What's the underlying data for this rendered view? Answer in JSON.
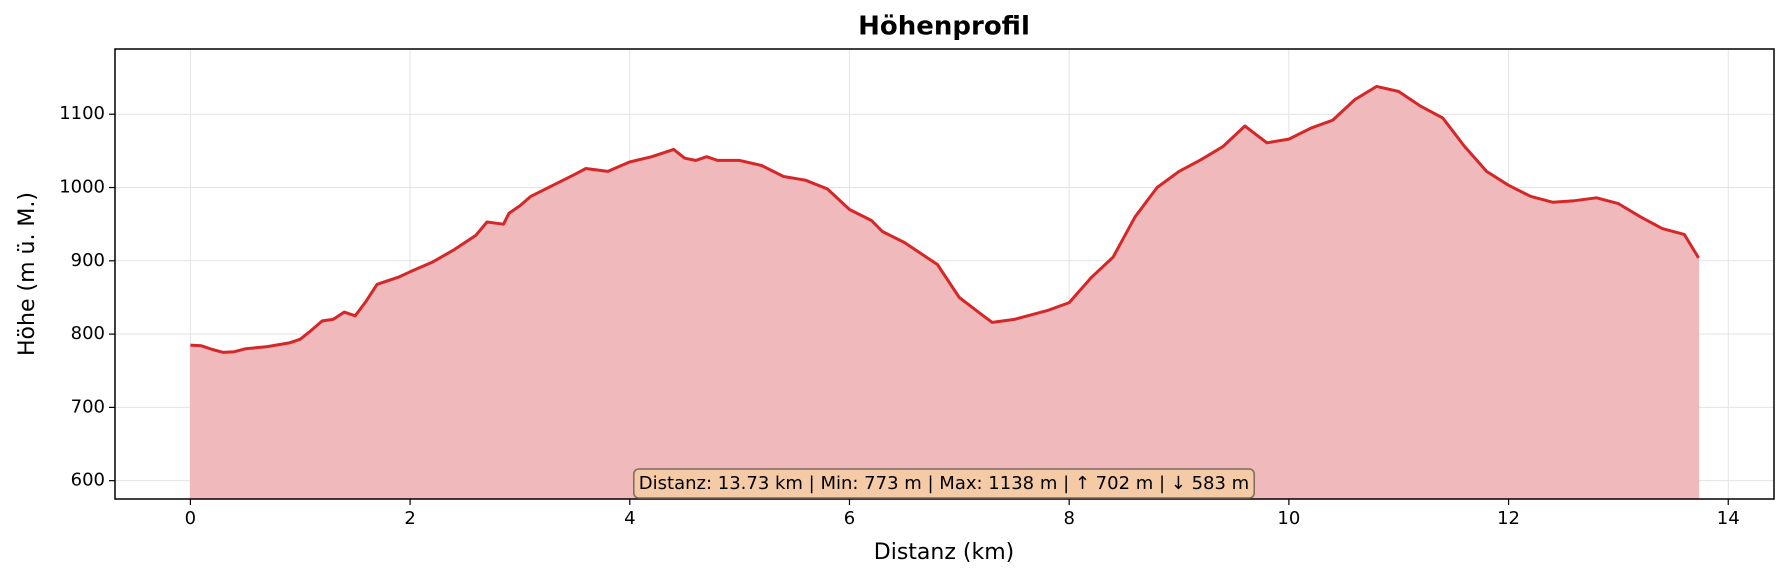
{
  "chart_data": {
    "type": "area",
    "title": "Höhenprofil",
    "xlabel": "Distanz (km)",
    "ylabel": "Höhe (m ü. M.)",
    "annotation": "Distanz: 13.73 km | Min: 773 m | Max: 1138 m | ↑ 702 m | ↓ 583 m",
    "x": [
      0,
      0.1,
      0.2,
      0.3,
      0.4,
      0.5,
      0.7,
      0.9,
      1.0,
      1.1,
      1.2,
      1.3,
      1.4,
      1.5,
      1.6,
      1.7,
      1.9,
      2.0,
      2.2,
      2.4,
      2.6,
      2.7,
      2.85,
      2.9,
      3.0,
      3.1,
      3.3,
      3.5,
      3.6,
      3.8,
      4.0,
      4.2,
      4.4,
      4.5,
      4.6,
      4.7,
      4.8,
      5.0,
      5.2,
      5.4,
      5.6,
      5.8,
      6.0,
      6.2,
      6.3,
      6.5,
      6.8,
      7.0,
      7.2,
      7.3,
      7.5,
      7.8,
      8.0,
      8.2,
      8.4,
      8.6,
      8.8,
      9.0,
      9.2,
      9.4,
      9.6,
      9.8,
      10.0,
      10.2,
      10.4,
      10.6,
      10.8,
      11.0,
      11.2,
      11.4,
      11.6,
      11.8,
      12.0,
      12.2,
      12.4,
      12.6,
      12.8,
      13.0,
      13.2,
      13.4,
      13.6,
      13.73
    ],
    "series": [
      {
        "name": "Höhe",
        "color": "#d62728",
        "fill": "#f0b9bc",
        "values": [
          785,
          784,
          779,
          775,
          776,
          780,
          783,
          788,
          793,
          805,
          818,
          820,
          830,
          825,
          845,
          868,
          878,
          885,
          898,
          915,
          935,
          953,
          950,
          965,
          975,
          988,
          1003,
          1018,
          1026,
          1022,
          1035,
          1042,
          1052,
          1040,
          1037,
          1042,
          1037,
          1037,
          1030,
          1015,
          1010,
          998,
          970,
          955,
          940,
          925,
          895,
          850,
          827,
          816,
          820,
          832,
          843,
          877,
          905,
          960,
          1000,
          1022,
          1038,
          1056,
          1084,
          1061,
          1066,
          1081,
          1092,
          1120,
          1138,
          1131,
          1111,
          1095,
          1056,
          1022,
          1003,
          988,
          980,
          982,
          986,
          978,
          960,
          944,
          936,
          904
        ]
      }
    ],
    "xlim": [
      -0.6865,
      14.4165
    ],
    "ylim": [
      575,
      1189
    ],
    "xticks": [
      0,
      2,
      4,
      6,
      8,
      10,
      12,
      14
    ],
    "yticks": [
      600,
      700,
      800,
      900,
      1000,
      1100
    ],
    "grid": true
  }
}
